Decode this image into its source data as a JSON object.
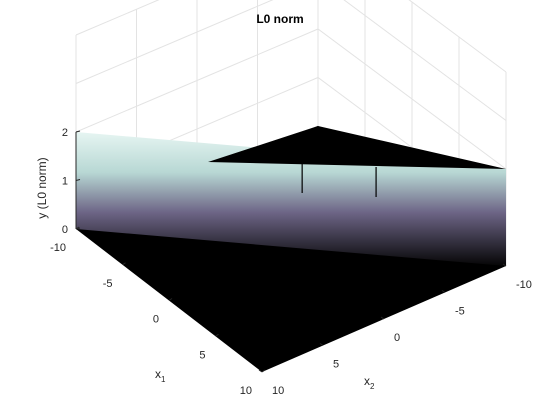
{
  "chart_data": {
    "type": "surface",
    "title": "L0 norm",
    "xlabel": {
      "base": "x",
      "sub": "1"
    },
    "ylabel": {
      "base": "x",
      "sub": "2"
    },
    "zlabel": "y (L0 norm)",
    "x1_ticks": [
      "-10",
      "-5",
      "0",
      "5",
      "10"
    ],
    "x2_ticks": [
      "-10",
      "-5",
      "0",
      "5",
      "10"
    ],
    "z_ticks": [
      "0",
      "1",
      "2"
    ],
    "xlim": [
      -10,
      10
    ],
    "ylim": [
      -10,
      10
    ],
    "zlim": [
      0,
      2
    ],
    "grid": true,
    "colormap": "bone",
    "surface_description_values": {
      "zero_region_value": 0,
      "ridge_value": 2,
      "ridge_line": "x1 + x2 = 0 diagonal wall",
      "axis_line_value": 1
    },
    "colors": {
      "background": "#ffffff",
      "surface_low": "#000000",
      "surface_mid": "#5c5470",
      "surface_high": "#d8f0ea",
      "grid": "#e3e3e3"
    }
  }
}
